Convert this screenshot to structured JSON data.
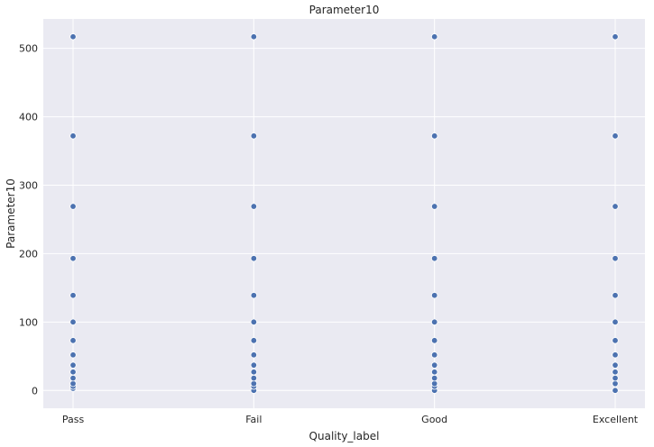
{
  "chart_data": {
    "type": "scatter",
    "title": "Parameter10",
    "xlabel": "Quality_label",
    "ylabel": "Parameter10",
    "categories": [
      "Pass",
      "Fail",
      "Good",
      "Excellent"
    ],
    "y_values": [
      0,
      3,
      6,
      10,
      18,
      27,
      37,
      52,
      73,
      100,
      139,
      193,
      269,
      372,
      517
    ],
    "points": [
      {
        "x": "Pass",
        "y": [
          3,
          6,
          10,
          18,
          27,
          37,
          52,
          73,
          100,
          139,
          193,
          269,
          372,
          517
        ]
      },
      {
        "x": "Fail",
        "y": [
          0,
          6,
          10,
          18,
          27,
          37,
          52,
          73,
          100,
          139,
          193,
          269,
          372,
          517
        ]
      },
      {
        "x": "Good",
        "y": [
          0,
          6,
          10,
          18,
          27,
          37,
          52,
          73,
          100,
          139,
          193,
          269,
          372,
          517
        ]
      },
      {
        "x": "Excellent",
        "y": [
          0,
          10,
          18,
          27,
          37,
          52,
          73,
          100,
          139,
          193,
          269,
          372,
          517
        ]
      }
    ],
    "yticks": [
      0,
      100,
      200,
      300,
      400,
      500
    ],
    "ylim": [
      -26,
      543
    ],
    "grid": true,
    "colors": {
      "background": "#eaeaf2",
      "grid": "#ffffff",
      "marker": "#4c72b0",
      "marker_edge": "#ffffff"
    }
  }
}
